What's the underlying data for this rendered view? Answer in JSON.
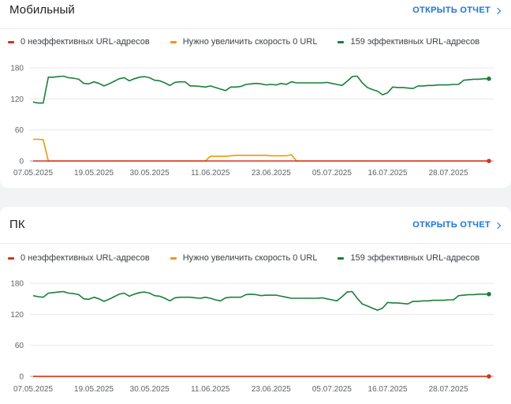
{
  "colors": {
    "red": "#d93025",
    "orange": "#f29900",
    "green": "#188038",
    "link": "#1a73e8"
  },
  "open_report_label": "ОТКРЫТЬ ОТЧЕТ",
  "legend": {
    "poor": "0 неэффективных URL-адресов",
    "needs_improvement": "Нужно увеличить скорость 0 URL",
    "good": "159 эффективных URL-адресов"
  },
  "x_tick_labels": [
    "07.05.2025",
    "19.05.2025",
    "30.05.2025",
    "11.06.2025",
    "23.06.2025",
    "05.07.2025",
    "16.07.2025",
    "28.07.2025"
  ],
  "y_tick_labels": [
    "180",
    "120",
    "60",
    "0"
  ],
  "mobile": {
    "title": "Мобильный"
  },
  "pc": {
    "title": "ПК"
  },
  "chart_data": [
    {
      "type": "line",
      "title": "Мобильный",
      "x_start": "07.05.2025",
      "x_end": "04.08.2025",
      "ylim": [
        0,
        180
      ],
      "yticks": [
        0,
        60,
        120,
        180
      ],
      "grid": true,
      "legend_placement": "top-left",
      "series": [
        {
          "name": "0 неэффективных URL-адресов",
          "color": "#d93025",
          "values": [
            0,
            0,
            0,
            0,
            0,
            0,
            0,
            0,
            0,
            0,
            0,
            0,
            0,
            0,
            0,
            0,
            0,
            0,
            0,
            0,
            0,
            0,
            0,
            0,
            0,
            0,
            0,
            0,
            0,
            0,
            0,
            0,
            0,
            0,
            0,
            0,
            0,
            0,
            0,
            0,
            0,
            0,
            0,
            0,
            0,
            0,
            0,
            0,
            0,
            0,
            0,
            0,
            0,
            0,
            0,
            0,
            0,
            0,
            0,
            0,
            0,
            0,
            0,
            0,
            0,
            0,
            0,
            0,
            0,
            0,
            0,
            0,
            0,
            0,
            0,
            0,
            0,
            0,
            0,
            0,
            0,
            0,
            0,
            0,
            0,
            0,
            0,
            0,
            0,
            0,
            0
          ]
        },
        {
          "name": "Нужно увеличить скорость 0 URL",
          "color": "#f29900",
          "values": [
            42,
            42,
            41,
            0,
            0,
            0,
            0,
            0,
            0,
            0,
            0,
            0,
            0,
            0,
            0,
            0,
            0,
            0,
            0,
            0,
            0,
            0,
            0,
            0,
            0,
            0,
            0,
            0,
            0,
            0,
            0,
            0,
            0,
            0,
            0,
            9,
            9,
            9,
            9,
            10,
            11,
            11,
            11,
            11,
            11,
            11,
            11,
            10,
            10,
            10,
            10,
            12,
            0,
            0,
            0,
            0,
            0,
            0,
            0,
            0,
            0,
            0,
            0,
            0,
            0,
            0,
            0,
            0,
            0,
            0,
            0,
            0,
            0,
            0,
            0,
            0,
            0,
            0,
            0,
            0,
            0,
            0,
            0,
            0,
            0,
            0,
            0,
            0,
            0,
            0,
            0
          ]
        },
        {
          "name": "159 эффективных URL-адресов",
          "color": "#188038",
          "values": [
            114,
            112,
            112,
            162,
            162,
            163,
            164,
            161,
            160,
            158,
            150,
            149,
            153,
            150,
            145,
            149,
            154,
            159,
            161,
            155,
            159,
            162,
            163,
            161,
            156,
            155,
            151,
            146,
            152,
            153,
            153,
            145,
            145,
            144,
            143,
            145,
            142,
            139,
            136,
            143,
            143,
            144,
            148,
            149,
            150,
            149,
            147,
            148,
            147,
            150,
            148,
            153,
            151,
            151,
            151,
            151,
            151,
            151,
            152,
            150,
            148,
            146,
            154,
            163,
            164,
            151,
            142,
            138,
            135,
            128,
            132,
            143,
            142,
            142,
            141,
            140,
            145,
            145,
            146,
            146,
            147,
            147,
            147,
            148,
            148,
            156,
            157,
            158,
            158,
            159,
            159
          ]
        }
      ]
    },
    {
      "type": "line",
      "title": "ПК",
      "x_start": "07.05.2025",
      "x_end": "04.08.2025",
      "ylim": [
        0,
        180
      ],
      "yticks": [
        0,
        60,
        120,
        180
      ],
      "grid": true,
      "legend_placement": "top-left",
      "series": [
        {
          "name": "0 неэффективных URL-адресов",
          "color": "#d93025",
          "values": [
            0,
            0,
            0,
            0,
            0,
            0,
            0,
            0,
            0,
            0,
            0,
            0,
            0,
            0,
            0,
            0,
            0,
            0,
            0,
            0,
            0,
            0,
            0,
            0,
            0,
            0,
            0,
            0,
            0,
            0,
            0,
            0,
            0,
            0,
            0,
            0,
            0,
            0,
            0,
            0,
            0,
            0,
            0,
            0,
            0,
            0,
            0,
            0,
            0,
            0,
            0,
            0,
            0,
            0,
            0,
            0,
            0,
            0,
            0,
            0,
            0,
            0,
            0,
            0,
            0,
            0,
            0,
            0,
            0,
            0,
            0,
            0,
            0,
            0,
            0,
            0,
            0,
            0,
            0,
            0,
            0,
            0,
            0,
            0,
            0,
            0,
            0,
            0,
            0,
            0,
            0
          ]
        },
        {
          "name": "Нужно увеличить скорость 0 URL",
          "color": "#f29900",
          "values": [
            0,
            0,
            0,
            0,
            0,
            0,
            0,
            0,
            0,
            0,
            0,
            0,
            0,
            0,
            0,
            0,
            0,
            0,
            0,
            0,
            0,
            0,
            0,
            0,
            0,
            0,
            0,
            0,
            0,
            0,
            0,
            0,
            0,
            0,
            0,
            0,
            0,
            0,
            0,
            0,
            0,
            0,
            0,
            0,
            0,
            0,
            0,
            0,
            0,
            0,
            0,
            0,
            0,
            0,
            0,
            0,
            0,
            0,
            0,
            0,
            0,
            0,
            0,
            0,
            0,
            0,
            0,
            0,
            0,
            0,
            0,
            0,
            0,
            0,
            0,
            0,
            0,
            0,
            0,
            0,
            0,
            0,
            0,
            0,
            0,
            0,
            0,
            0,
            0,
            0,
            0
          ]
        },
        {
          "name": "159 эффективных URL-адресов",
          "color": "#188038",
          "values": [
            156,
            154,
            153,
            161,
            162,
            163,
            164,
            161,
            160,
            158,
            150,
            149,
            153,
            150,
            145,
            149,
            154,
            159,
            161,
            155,
            159,
            162,
            163,
            161,
            156,
            155,
            151,
            146,
            152,
            153,
            153,
            153,
            152,
            151,
            153,
            151,
            148,
            146,
            152,
            153,
            153,
            153,
            158,
            159,
            158,
            156,
            157,
            157,
            157,
            155,
            153,
            151,
            151,
            151,
            151,
            151,
            151,
            152,
            150,
            148,
            146,
            154,
            163,
            164,
            151,
            140,
            136,
            132,
            128,
            132,
            143,
            142,
            142,
            141,
            140,
            145,
            145,
            146,
            146,
            147,
            147,
            147,
            148,
            148,
            156,
            157,
            158,
            158,
            159,
            159,
            159
          ]
        }
      ]
    }
  ]
}
